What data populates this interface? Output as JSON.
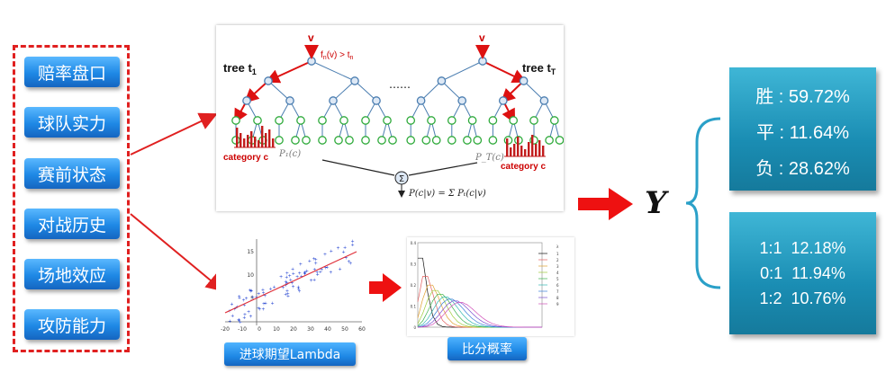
{
  "factors": [
    "赔率盘口",
    "球队实力",
    "赛前状态",
    "对战历史",
    "场地效应",
    "攻防能力"
  ],
  "forest": {
    "tree1_label": "tree t",
    "tree1_sub": "1",
    "treeT_label": "tree t",
    "treeT_sub": "T",
    "split_rule": "f",
    "split_rule_sub": "n",
    "split_rule_rest": "(v) > t",
    "split_rule_sub2": "n",
    "v_label": "v",
    "dots": "……",
    "category_label": "category c",
    "p1": "P₁(c)",
    "pT": "P_T(c)",
    "formula": "P(c|v) = Σ Pₜ(c|v)",
    "sum_symbol": "Σ"
  },
  "scatter_chip": "进球期望Lambda",
  "poisson_chip": "比分概率",
  "y_label": "Y",
  "results_top": [
    {
      "k": "胜",
      "v": "59.72%"
    },
    {
      "k": "平",
      "v": "11.64%"
    },
    {
      "k": "负",
      "v": "28.62%"
    }
  ],
  "results_bottom": [
    {
      "score": "1:1",
      "v": "12.18%"
    },
    {
      "score": "0:1",
      "v": "11.94%"
    },
    {
      "score": "1:2",
      "v": "10.76%"
    }
  ],
  "scatter_axis": {
    "xticks": [
      "-20",
      "-10",
      "0",
      "10",
      "20",
      "30",
      "40",
      "50",
      "60"
    ],
    "yticks": [
      "5",
      "10",
      "15"
    ]
  },
  "poisson_axis": {
    "yticks": [
      "0.4",
      "0.3",
      "0.2",
      "0.1",
      "0"
    ],
    "legend_title": "λ",
    "lambdas": [
      1,
      2,
      3,
      4,
      5,
      6,
      7,
      8,
      9
    ]
  },
  "colors": {
    "accent_red": "#e02020",
    "factor_blue": "#1e88e5",
    "result_teal": "#1a8db3"
  }
}
